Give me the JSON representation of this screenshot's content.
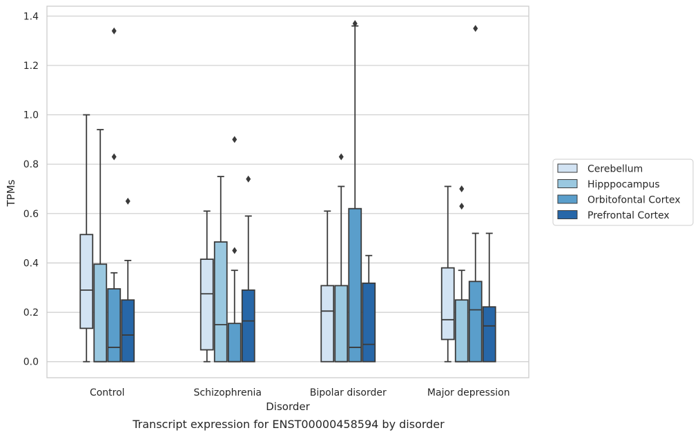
{
  "chart_data": {
    "type": "box",
    "ylabel": "TPMs",
    "xlabel": "Disorder",
    "caption": "Transcript expression for ENST00000458594 by disorder",
    "ylim": [
      -0.065,
      1.44
    ],
    "yticks": [
      0.0,
      0.2,
      0.4,
      0.6,
      0.8,
      1.0,
      1.2,
      1.4
    ],
    "ytick_labels": [
      "0.0",
      "0.2",
      "0.4",
      "0.6",
      "0.8",
      "1.0",
      "1.2",
      "1.4"
    ],
    "grid": "horizontal",
    "legend_position": "right",
    "categories": [
      "Control",
      "Schizophrenia",
      "Bipolar disorder",
      "Major depression"
    ],
    "series": [
      {
        "name": "Cerebellum",
        "color": "#d2e3f3",
        "boxes": [
          {
            "q1": 0.135,
            "median": 0.29,
            "q3": 0.515,
            "whislo": 0.0,
            "whishi": 1.0,
            "fliers": []
          },
          {
            "q1": 0.048,
            "median": 0.275,
            "q3": 0.415,
            "whislo": 0.0,
            "whishi": 0.61,
            "fliers": []
          },
          {
            "q1": 0.0,
            "median": 0.205,
            "q3": 0.308,
            "whislo": 0.0,
            "whishi": 0.61,
            "fliers": []
          },
          {
            "q1": 0.09,
            "median": 0.17,
            "q3": 0.38,
            "whislo": 0.0,
            "whishi": 0.71,
            "fliers": []
          }
        ]
      },
      {
        "name": "Hipppocampus",
        "color": "#9ac8e0",
        "boxes": [
          {
            "q1": 0.0,
            "median": 0.0,
            "q3": 0.395,
            "whislo": 0.0,
            "whishi": 0.94,
            "fliers": []
          },
          {
            "q1": 0.0,
            "median": 0.15,
            "q3": 0.485,
            "whislo": 0.0,
            "whishi": 0.75,
            "fliers": []
          },
          {
            "q1": 0.0,
            "median": 0.0,
            "q3": 0.308,
            "whislo": 0.0,
            "whishi": 0.71,
            "fliers": [
              0.83
            ]
          },
          {
            "q1": 0.0,
            "median": 0.0,
            "q3": 0.25,
            "whislo": 0.0,
            "whishi": 0.37,
            "fliers": [
              0.63,
              0.7
            ]
          }
        ]
      },
      {
        "name": "Orbitofontal Cortex",
        "color": "#5a9ecb",
        "boxes": [
          {
            "q1": 0.0,
            "median": 0.058,
            "q3": 0.295,
            "whislo": 0.0,
            "whishi": 0.36,
            "fliers": [
              0.83,
              1.34
            ]
          },
          {
            "q1": 0.0,
            "median": 0.0,
            "q3": 0.155,
            "whislo": 0.0,
            "whishi": 0.37,
            "fliers": [
              0.45,
              0.9
            ]
          },
          {
            "q1": 0.0,
            "median": 0.058,
            "q3": 0.62,
            "whislo": 0.0,
            "whishi": 1.36,
            "fliers": [
              1.37
            ]
          },
          {
            "q1": 0.0,
            "median": 0.21,
            "q3": 0.325,
            "whislo": 0.0,
            "whishi": 0.52,
            "fliers": [
              1.35
            ]
          }
        ]
      },
      {
        "name": "Prefrontal Cortex",
        "color": "#2767a8",
        "boxes": [
          {
            "q1": 0.0,
            "median": 0.108,
            "q3": 0.25,
            "whislo": 0.0,
            "whishi": 0.41,
            "fliers": [
              0.65
            ]
          },
          {
            "q1": 0.0,
            "median": 0.165,
            "q3": 0.29,
            "whislo": 0.0,
            "whishi": 0.59,
            "fliers": [
              0.74
            ]
          },
          {
            "q1": 0.0,
            "median": 0.07,
            "q3": 0.318,
            "whislo": 0.0,
            "whishi": 0.43,
            "fliers": []
          },
          {
            "q1": 0.0,
            "median": 0.145,
            "q3": 0.222,
            "whislo": 0.0,
            "whishi": 0.52,
            "fliers": []
          }
        ]
      }
    ]
  }
}
